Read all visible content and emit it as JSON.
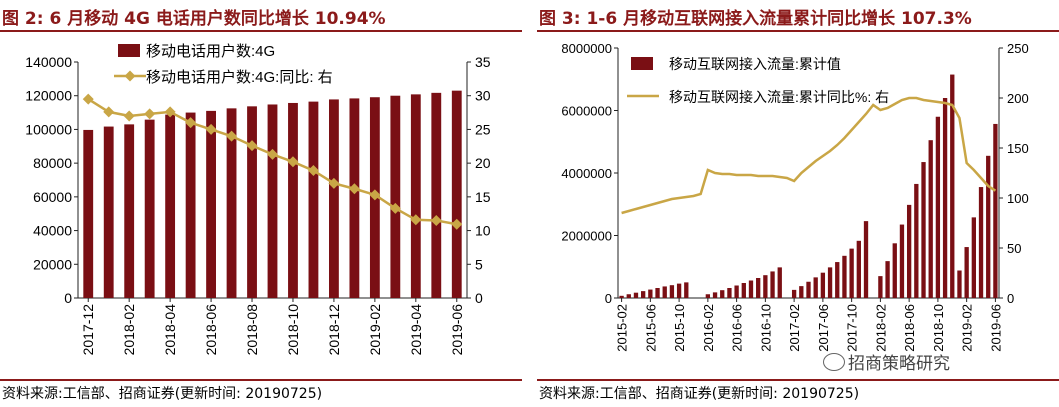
{
  "colors": {
    "bar": "#7a0f14",
    "line": "#c9a646",
    "title": "#8b1a1a"
  },
  "left": {
    "title": "图 2:  6 月移动 4G 电话用户数同比增长 10.94%",
    "source": "资料来源:工信部、招商证券(更新时间: 20190725)",
    "chart_data": {
      "type": "bar",
      "categories": [
        "2017-12",
        "2018-01",
        "2018-02",
        "2018-03",
        "2018-04",
        "2018-05",
        "2018-06",
        "2018-07",
        "2018-08",
        "2018-09",
        "2018-10",
        "2018-11",
        "2018-12",
        "2019-01",
        "2019-02",
        "2019-03",
        "2019-04",
        "2019-05",
        "2019-06"
      ],
      "x_tick_labels": [
        "2017-12",
        "2018-02",
        "2018-04",
        "2018-06",
        "2018-08",
        "2018-10",
        "2018-12",
        "2019-02",
        "2019-04",
        "2019-06"
      ],
      "series": [
        {
          "name": "移动电话用户数:4G",
          "type": "bar",
          "axis": "left",
          "values": [
            99700,
            101700,
            103000,
            105800,
            108800,
            110000,
            111000,
            112500,
            113700,
            114800,
            115700,
            116500,
            117800,
            118400,
            119100,
            120000,
            120800,
            121700,
            123000
          ]
        },
        {
          "name": "移动电话用户数:4G:同比:  右",
          "type": "line",
          "axis": "right",
          "values": [
            29.5,
            27.6,
            27.0,
            27.3,
            27.6,
            26.0,
            25.0,
            24.0,
            22.6,
            21.3,
            20.2,
            18.9,
            17.0,
            16.2,
            15.3,
            13.3,
            11.6,
            11.5,
            10.94
          ]
        }
      ],
      "ylim": [
        0,
        140000
      ],
      "y_ticks": [
        0,
        20000,
        40000,
        60000,
        80000,
        100000,
        120000,
        140000
      ],
      "y2lim": [
        0,
        35
      ],
      "y2_ticks": [
        0,
        5,
        10,
        15,
        20,
        25,
        30,
        35
      ],
      "legend": "top"
    }
  },
  "right": {
    "title": "图 3:  1-6 月移动互联网接入流量累计同比增长 107.3%",
    "source": "资料来源:工信部、招商证券(更新时间: 20190725)",
    "watermark": "招商策略研究",
    "chart_data": {
      "type": "bar",
      "categories": [
        "2015-02",
        "2015-03",
        "2015-04",
        "2015-05",
        "2015-06",
        "2015-07",
        "2015-08",
        "2015-09",
        "2015-10",
        "2015-11",
        "2015-12",
        "2016-01",
        "2016-02",
        "2016-03",
        "2016-04",
        "2016-05",
        "2016-06",
        "2016-07",
        "2016-08",
        "2016-09",
        "2016-10",
        "2016-11",
        "2016-12",
        "2017-01",
        "2017-02",
        "2017-03",
        "2017-04",
        "2017-05",
        "2017-06",
        "2017-07",
        "2017-08",
        "2017-09",
        "2017-10",
        "2017-11",
        "2017-12",
        "2018-01",
        "2018-02",
        "2018-03",
        "2018-04",
        "2018-05",
        "2018-06",
        "2018-07",
        "2018-08",
        "2018-09",
        "2018-10",
        "2018-11",
        "2018-12",
        "2019-01",
        "2019-02",
        "2019-03",
        "2019-04",
        "2019-05",
        "2019-06"
      ],
      "x_tick_labels": [
        "2015-02",
        "2015-06",
        "2015-10",
        "2016-02",
        "2016-06",
        "2016-10",
        "2017-02",
        "2017-06",
        "2017-10",
        "2018-02",
        "2018-06",
        "2018-10",
        "2019-02",
        "2019-06"
      ],
      "series": [
        {
          "name": "移动互联网接入流量:累计值",
          "type": "bar",
          "axis": "left",
          "values": [
            70000,
            120000,
            170000,
            220000,
            270000,
            320000,
            370000,
            410000,
            460000,
            500000,
            0,
            0,
            120000,
            180000,
            250000,
            320000,
            400000,
            480000,
            560000,
            640000,
            730000,
            850000,
            980000,
            0,
            260000,
            380000,
            520000,
            660000,
            810000,
            980000,
            1150000,
            1350000,
            1580000,
            1830000,
            2460000,
            0,
            700000,
            1180000,
            1750000,
            2350000,
            2980000,
            3650000,
            4350000,
            5050000,
            5800000,
            6400000,
            7150000,
            880000,
            1630000,
            2580000,
            3550000,
            4550000,
            5570000
          ]
        },
        {
          "name": "移动互联网接入流量:累计同比%:  右",
          "type": "line",
          "axis": "right",
          "values": [
            85,
            87,
            89,
            91,
            93,
            95,
            97,
            99,
            100,
            101,
            102,
            104,
            128,
            125,
            124,
            124,
            123,
            123,
            123,
            122,
            122,
            122,
            121,
            120,
            117,
            125,
            131,
            137,
            142,
            147,
            153,
            160,
            168,
            176,
            184,
            193,
            188,
            190,
            194,
            198,
            200,
            200,
            198,
            197,
            196,
            195,
            193,
            180,
            135,
            128,
            120,
            112,
            107.3
          ]
        }
      ],
      "ylim": [
        0,
        8000000
      ],
      "y_ticks": [
        0,
        2000000,
        4000000,
        6000000,
        8000000
      ],
      "y2lim": [
        0,
        250
      ],
      "y2_ticks": [
        0,
        50,
        100,
        150,
        200,
        250
      ],
      "legend": "top-left"
    }
  }
}
